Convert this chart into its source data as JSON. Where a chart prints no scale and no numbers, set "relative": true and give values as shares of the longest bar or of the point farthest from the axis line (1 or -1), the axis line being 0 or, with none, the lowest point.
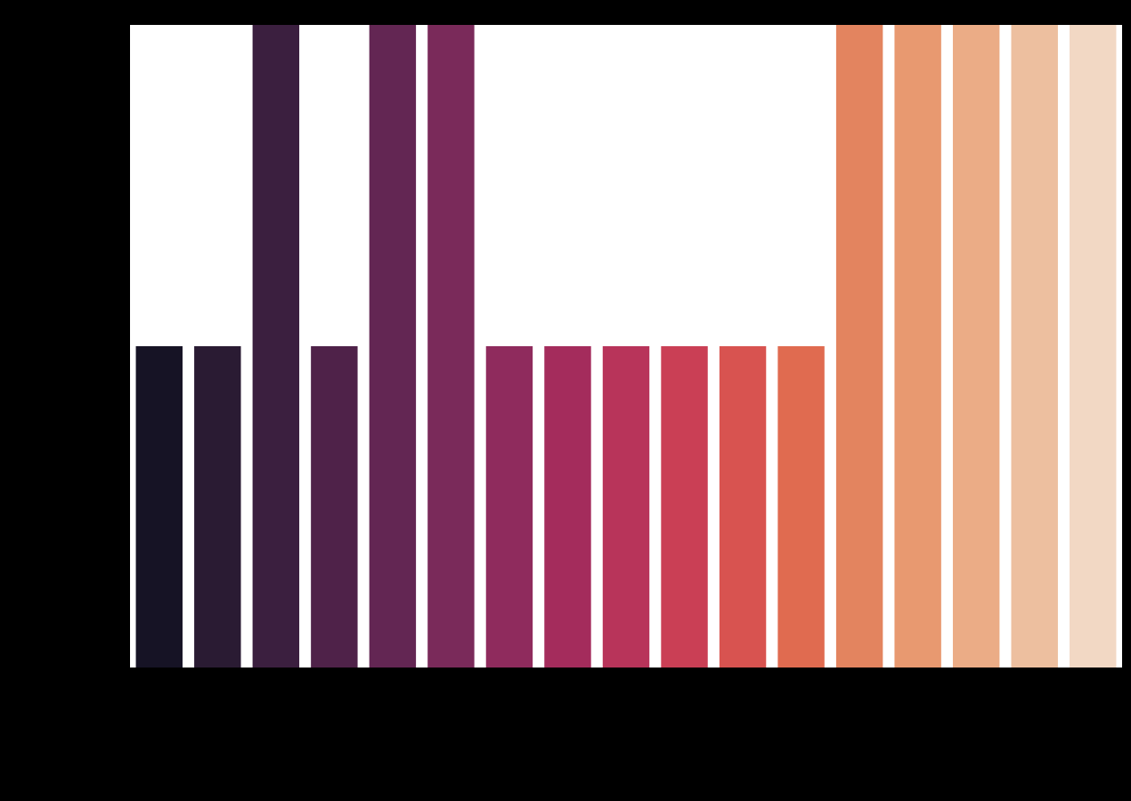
{
  "chart_data": {
    "type": "bar",
    "relative": true,
    "categories": [
      null,
      null,
      null,
      null,
      null,
      null,
      null,
      null,
      null,
      null,
      null,
      null,
      null,
      null,
      null,
      null,
      null
    ],
    "values": [
      0.5,
      0.5,
      1,
      0.5,
      1,
      1,
      0.5,
      0.5,
      0.5,
      0.5,
      0.5,
      0.5,
      1,
      1,
      1,
      1,
      1
    ],
    "colors": [
      "#161325",
      "#2a1b33",
      "#3b1f3f",
      "#4f2249",
      "#632653",
      "#7a2a5a",
      "#8f2b5d",
      "#a42c5c",
      "#b8345a",
      "#ca3f55",
      "#d85350",
      "#e06b50",
      "#e3845f",
      "#e89970",
      "#ebac86",
      "#edbf9f",
      "#f2d8c4"
    ]
  }
}
